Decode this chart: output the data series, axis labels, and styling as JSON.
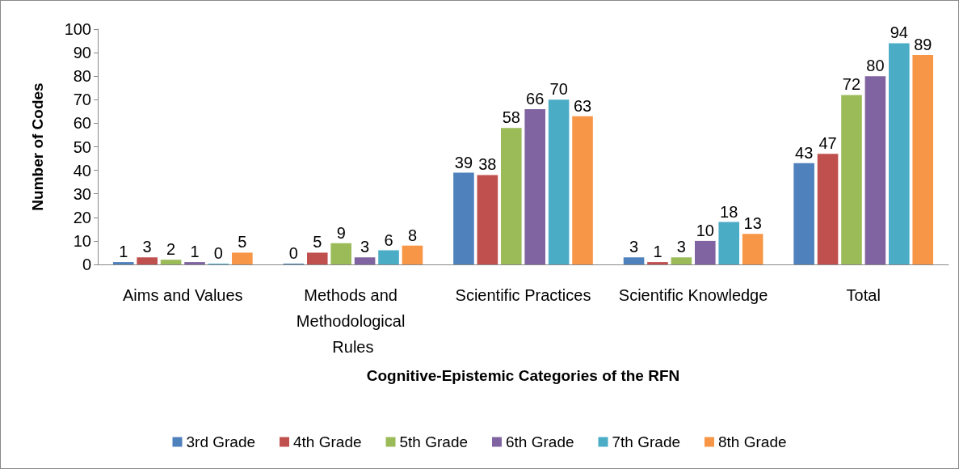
{
  "chart_data": {
    "type": "bar",
    "xlabel": "Cognitive-Epistemic Categories of the RFN",
    "ylabel": "Number of Codes",
    "categories": [
      "Aims and Values",
      "Methods and Methodological Rules",
      "Scientific Practices",
      "Scientific Knowledge",
      "Total"
    ],
    "series": [
      {
        "name": "3rd Grade",
        "color": "#4f81bd",
        "values": [
          1,
          0,
          39,
          3,
          43
        ]
      },
      {
        "name": "4th Grade",
        "color": "#c0504d",
        "values": [
          3,
          5,
          38,
          1,
          47
        ]
      },
      {
        "name": "5th Grade",
        "color": "#9bbb59",
        "values": [
          2,
          9,
          58,
          3,
          72
        ]
      },
      {
        "name": "6th Grade",
        "color": "#8064a2",
        "values": [
          1,
          3,
          66,
          10,
          80
        ]
      },
      {
        "name": "7th Grade",
        "color": "#4bacc6",
        "values": [
          0,
          6,
          70,
          18,
          94
        ]
      },
      {
        "name": "8th Grade",
        "color": "#f79646",
        "values": [
          5,
          8,
          63,
          13,
          89
        ]
      }
    ],
    "ylim": [
      0,
      100
    ],
    "yticks": [
      0,
      10,
      20,
      30,
      40,
      50,
      60,
      70,
      80,
      90,
      100
    ],
    "grid": false,
    "legend": "bottom",
    "data_labels": true
  }
}
